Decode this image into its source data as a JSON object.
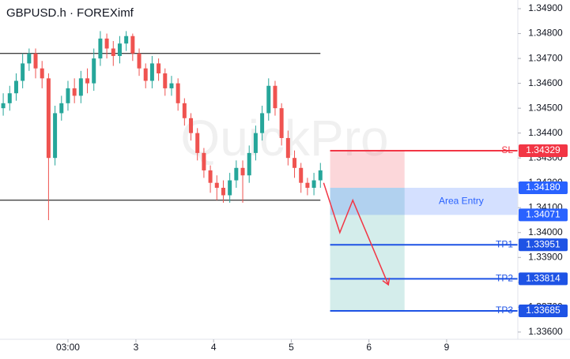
{
  "chart_data": {
    "type": "candlestick",
    "title": "GBPUSD.h · FOREXimf",
    "watermark": "QuickPro",
    "x": [
      -17,
      -15,
      -13,
      -11,
      -9,
      -7,
      -5,
      -3,
      -1,
      1,
      3,
      5,
      7,
      9,
      11,
      13,
      15,
      17,
      19,
      21,
      23,
      25,
      27,
      29,
      31,
      33,
      35,
      37,
      39,
      41,
      43,
      45,
      47,
      49,
      51,
      53,
      55,
      57,
      59,
      61,
      63,
      65,
      67,
      69,
      71,
      73,
      75,
      77,
      79,
      81
    ],
    "open": [
      1.345,
      1.3452,
      1.3456,
      1.3461,
      1.3468,
      1.3472,
      1.3466,
      1.3462,
      1.343,
      1.3448,
      1.3452,
      1.3458,
      1.3455,
      1.3462,
      1.346,
      1.347,
      1.3478,
      1.3474,
      1.3471,
      1.3476,
      1.3479,
      1.3472,
      1.3466,
      1.3461,
      1.3468,
      1.3464,
      1.3458,
      1.346,
      1.3452,
      1.3446,
      1.344,
      1.3432,
      1.3425,
      1.342,
      1.3418,
      1.3415,
      1.3421,
      1.3426,
      1.3423,
      1.3432,
      1.344,
      1.3448,
      1.3459,
      1.345,
      1.3438,
      1.343,
      1.3426,
      1.342,
      1.3418,
      1.3421
    ],
    "high": [
      1.3456,
      1.3459,
      1.3464,
      1.3472,
      1.3474,
      1.3474,
      1.3469,
      1.3464,
      1.3451,
      1.3455,
      1.3461,
      1.3462,
      1.3465,
      1.3466,
      1.3474,
      1.3481,
      1.348,
      1.3477,
      1.3479,
      1.3481,
      1.348,
      1.3474,
      1.3468,
      1.3471,
      1.347,
      1.3466,
      1.3463,
      1.3462,
      1.3454,
      1.3448,
      1.3442,
      1.3434,
      1.3427,
      1.3423,
      1.3421,
      1.3424,
      1.3429,
      1.3429,
      1.3435,
      1.3443,
      1.3451,
      1.3462,
      1.3461,
      1.3452,
      1.3441,
      1.3433,
      1.3428,
      1.3422,
      1.3424,
      1.3428
    ],
    "low": [
      1.3447,
      1.3449,
      1.3453,
      1.3458,
      1.3465,
      1.3462,
      1.3458,
      1.3405,
      1.3427,
      1.3445,
      1.3449,
      1.3452,
      1.3452,
      1.3456,
      1.3457,
      1.3467,
      1.347,
      1.3467,
      1.3468,
      1.3473,
      1.3469,
      1.3463,
      1.3458,
      1.3458,
      1.3461,
      1.3455,
      1.3455,
      1.3449,
      1.3443,
      1.3437,
      1.3429,
      1.3422,
      1.3416,
      1.3413,
      1.3412,
      1.3412,
      1.3418,
      1.3412,
      1.342,
      1.3429,
      1.3437,
      1.3445,
      1.3447,
      1.3435,
      1.3427,
      1.3422,
      1.3416,
      1.3415,
      1.3415,
      1.3418
    ],
    "close": [
      1.3452,
      1.3456,
      1.3461,
      1.3468,
      1.3472,
      1.3466,
      1.3462,
      1.343,
      1.3448,
      1.3452,
      1.3458,
      1.3455,
      1.3462,
      1.346,
      1.347,
      1.3478,
      1.3474,
      1.3471,
      1.3476,
      1.3479,
      1.3472,
      1.3466,
      1.3461,
      1.3468,
      1.3464,
      1.3458,
      1.346,
      1.3452,
      1.3446,
      1.344,
      1.3432,
      1.3425,
      1.342,
      1.3418,
      1.3415,
      1.3421,
      1.3426,
      1.3423,
      1.3432,
      1.344,
      1.3448,
      1.3459,
      1.345,
      1.3438,
      1.343,
      1.3426,
      1.342,
      1.3418,
      1.3421,
      1.3425
    ],
    "up_color": "#26a69a",
    "down_color": "#ef5350",
    "xlim": [
      -18,
      142
    ],
    "xticks": [
      {
        "value": 3,
        "label": "03:00"
      },
      {
        "value": 24,
        "label": "3"
      },
      {
        "value": 48,
        "label": "4"
      },
      {
        "value": 72,
        "label": "5"
      },
      {
        "value": 96,
        "label": "6"
      },
      {
        "value": 120,
        "label": "9"
      }
    ],
    "ylim": [
      1.33571,
      1.34935
    ],
    "yticks": [
      {
        "value": 1.349,
        "label": "1.34900"
      },
      {
        "value": 1.348,
        "label": "1.34800"
      },
      {
        "value": 1.347,
        "label": "1.34700"
      },
      {
        "value": 1.346,
        "label": "1.34600"
      },
      {
        "value": 1.345,
        "label": "1.34500"
      },
      {
        "value": 1.344,
        "label": "1.34400"
      },
      {
        "value": 1.343,
        "label": "1.34300"
      },
      {
        "value": 1.342,
        "label": "1.34200"
      },
      {
        "value": 1.341,
        "label": "1.34100"
      },
      {
        "value": 1.34,
        "label": "1.34000"
      },
      {
        "value": 1.339,
        "label": "1.33900"
      },
      {
        "value": 1.338,
        "label": "1.33800"
      },
      {
        "value": 1.337,
        "label": "1.33700"
      },
      {
        "value": 1.336,
        "label": "1.33600"
      }
    ],
    "hlines": {
      "values": [
        1.3472,
        1.3413
      ],
      "color": "#000000"
    },
    "trade": {
      "x_range": [
        84,
        107
      ],
      "stop_loss": {
        "name": "SL",
        "value": 1.34329,
        "label": "1.34329",
        "color": "#f23645"
      },
      "entry": {
        "name": "Area Entry",
        "high": {
          "value": 1.3418,
          "label": "1.34180"
        },
        "low": {
          "value": 1.34071,
          "label": "1.34071"
        },
        "color": "#2962ff"
      },
      "take_profits": [
        {
          "name": "TP1",
          "value": 1.33951,
          "label": "1.33951"
        },
        {
          "name": "TP2",
          "value": 1.33814,
          "label": "1.33814"
        },
        {
          "name": "TP3",
          "value": 1.33685,
          "label": "1.33685"
        }
      ],
      "tp_color": "#1e53e5",
      "projection": {
        "x": [
          82,
          87,
          91,
          102
        ],
        "y": [
          1.342,
          1.34,
          1.3413,
          1.3379
        ],
        "color": "#f23645"
      }
    }
  }
}
